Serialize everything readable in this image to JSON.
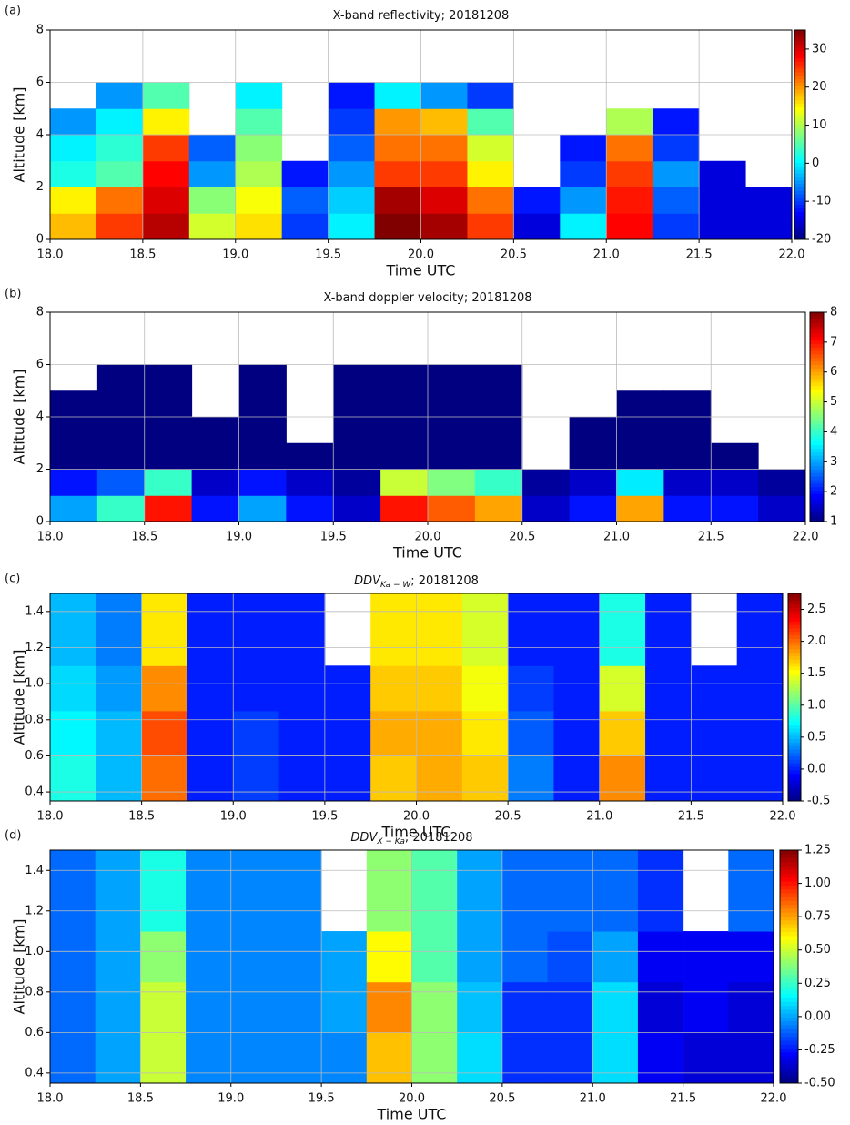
{
  "chart_data": [
    {
      "type": "heatmap",
      "label": "(a)",
      "title": "X-band reflectivity; 20181208",
      "xlabel": "Time UTC",
      "ylabel": "Altitude [km]",
      "colormap": "jet",
      "grid": true,
      "x_edges": [
        18,
        18.25,
        18.5,
        18.75,
        19,
        19.25,
        19.5,
        19.75,
        20,
        20.25,
        20.5,
        20.75,
        21,
        21.25,
        21.5,
        21.75,
        22
      ],
      "y_edges": [
        0,
        1,
        2,
        3,
        4,
        5,
        6
      ],
      "z": [
        [
          18,
          25,
          32,
          12,
          16,
          -10,
          0,
          35,
          33,
          25,
          -15,
          0,
          28,
          -10,
          -15,
          -15
        ],
        [
          15,
          22,
          30,
          8,
          14,
          -8,
          -2,
          33,
          30,
          22,
          -12,
          -5,
          27,
          -8,
          -15,
          -15
        ],
        [
          2,
          5,
          28,
          -5,
          10,
          -12,
          -5,
          25,
          25,
          15,
          null,
          -10,
          25,
          -5,
          -15,
          null
        ],
        [
          0,
          3,
          25,
          -8,
          8,
          null,
          -8,
          22,
          22,
          12,
          null,
          -12,
          22,
          -10,
          null,
          null
        ],
        [
          -5,
          0,
          15,
          null,
          5,
          null,
          -10,
          20,
          18,
          5,
          null,
          null,
          10,
          -12,
          null,
          null
        ],
        [
          null,
          -5,
          5,
          null,
          0,
          null,
          -12,
          0,
          -5,
          -10,
          null,
          null,
          null,
          null,
          null,
          null
        ]
      ],
      "xlim": [
        18,
        22
      ],
      "ylim": [
        0,
        8
      ],
      "xticks": [
        {
          "value": 18,
          "label": "18.0"
        },
        18.5,
        {
          "value": 19,
          "label": "19.0"
        },
        19.5,
        {
          "value": 20,
          "label": "20.0"
        },
        20.5,
        {
          "value": 21,
          "label": "21.0"
        },
        21.5,
        {
          "value": 22,
          "label": "22.0"
        }
      ],
      "yticks": [
        0,
        2,
        4,
        6,
        8
      ],
      "clim": [
        -20,
        35
      ],
      "cticks": [
        -20,
        -10,
        0,
        10,
        20,
        30
      ]
    },
    {
      "type": "heatmap",
      "label": "(b)",
      "title": "X-band doppler velocity; 20181208",
      "xlabel": "Time UTC",
      "ylabel": "Altitude [km]",
      "colormap": "jet",
      "grid": true,
      "x_edges": [
        18,
        18.25,
        18.5,
        18.75,
        19,
        19.25,
        19.5,
        19.75,
        20,
        20.25,
        20.5,
        20.75,
        21,
        21.25,
        21.5,
        21.75,
        22
      ],
      "y_edges": [
        0,
        1,
        2,
        3,
        4,
        5,
        6
      ],
      "z": [
        [
          3,
          4,
          7,
          2,
          3,
          2,
          1.5,
          7,
          6.5,
          6,
          1.5,
          2,
          6,
          2,
          2,
          1.5
        ],
        [
          2,
          2.5,
          4,
          1.5,
          2,
          1.5,
          1.2,
          5,
          4.5,
          4,
          1.2,
          1.5,
          3.5,
          1.5,
          1.5,
          1.2
        ],
        [
          1,
          1,
          1,
          1,
          1,
          1,
          1,
          1,
          1,
          1,
          null,
          1,
          1,
          1,
          1,
          null
        ],
        [
          1,
          1,
          1,
          1,
          1,
          null,
          1,
          1,
          1,
          1,
          null,
          1,
          1,
          1,
          null,
          null
        ],
        [
          1,
          1,
          1,
          null,
          1,
          null,
          1,
          1,
          1,
          1,
          null,
          null,
          1,
          1,
          null,
          null
        ],
        [
          null,
          1,
          1,
          null,
          1,
          null,
          1,
          1,
          1,
          1,
          null,
          null,
          null,
          null,
          null,
          null
        ]
      ],
      "xlim": [
        18,
        22
      ],
      "ylim": [
        0,
        8
      ],
      "xticks": [
        {
          "value": 18,
          "label": "18.0"
        },
        18.5,
        {
          "value": 19,
          "label": "19.0"
        },
        19.5,
        {
          "value": 20,
          "label": "20.0"
        },
        20.5,
        {
          "value": 21,
          "label": "21.0"
        },
        21.5,
        {
          "value": 22,
          "label": "22.0"
        }
      ],
      "yticks": [
        0,
        2,
        4,
        6,
        8
      ],
      "clim": [
        1,
        8
      ],
      "cticks": [
        1,
        2,
        3,
        4,
        5,
        6,
        7,
        8
      ]
    },
    {
      "type": "heatmap",
      "label": "(c)",
      "title": "DDV",
      "title_subscript": "Ka − W",
      "title_suffix": "; 20181208",
      "xlabel": "Time UTC",
      "ylabel": "Altitude [km]",
      "colormap": "jet",
      "grid": true,
      "x_edges": [
        18,
        18.25,
        18.5,
        18.75,
        19,
        19.25,
        19.5,
        19.75,
        20,
        20.25,
        20.5,
        20.75,
        21,
        21.25,
        21.5,
        21.75,
        22
      ],
      "y_edges": [
        0.35,
        0.6,
        0.85,
        1.1,
        1.5
      ],
      "z": [
        [
          0.8,
          0.5,
          2.0,
          0,
          0.1,
          0,
          0,
          1.7,
          1.8,
          1.7,
          0.3,
          0,
          1.9,
          0,
          0,
          0
        ],
        [
          0.7,
          0.5,
          2.1,
          0,
          0.1,
          0,
          0,
          1.8,
          1.8,
          1.6,
          0.2,
          0,
          1.7,
          0,
          0,
          0
        ],
        [
          0.6,
          0.4,
          1.9,
          0,
          0,
          0,
          0,
          1.7,
          1.7,
          1.5,
          0.1,
          0,
          1.4,
          0,
          0,
          0
        ],
        [
          0.5,
          0.3,
          1.6,
          0,
          0,
          0,
          null,
          1.6,
          1.6,
          1.4,
          0,
          0,
          0.8,
          0,
          null,
          0
        ]
      ],
      "xlim": [
        18,
        22
      ],
      "ylim": [
        0.35,
        1.5
      ],
      "xticks": [
        {
          "value": 18,
          "label": "18.0"
        },
        18.5,
        {
          "value": 19,
          "label": "19.0"
        },
        19.5,
        {
          "value": 20,
          "label": "20.0"
        },
        20.5,
        {
          "value": 21,
          "label": "21.0"
        },
        21.5,
        {
          "value": 22,
          "label": "22.0"
        }
      ],
      "yticks": [
        0.4,
        0.6,
        0.8,
        {
          "value": 1,
          "label": "1.0"
        },
        1.2,
        1.4
      ],
      "clim": [
        -0.5,
        2.75
      ],
      "cticks": [
        -0.5,
        {
          "value": 0,
          "label": "0.0"
        },
        0.5,
        {
          "value": 1,
          "label": "1.0"
        },
        1.5,
        {
          "value": 2,
          "label": "2.0"
        },
        2.5
      ]
    },
    {
      "type": "heatmap",
      "label": "(d)",
      "title": "DDV",
      "title_subscript": "X − Ka",
      "title_suffix": "; 20181208",
      "xlabel": "Time UTC",
      "ylabel": "Altitude [km]",
      "colormap": "jet",
      "grid": true,
      "x_edges": [
        18,
        18.25,
        18.5,
        18.75,
        19,
        19.25,
        19.5,
        19.75,
        20,
        20.25,
        20.5,
        20.75,
        21,
        21.25,
        21.5,
        21.75,
        22
      ],
      "y_edges": [
        0.35,
        0.6,
        0.85,
        1.1,
        1.5
      ],
      "z": [
        [
          -0.1,
          0,
          0.5,
          -0.05,
          -0.05,
          -0.05,
          -0.05,
          0.7,
          0.4,
          0.1,
          -0.2,
          -0.2,
          0.1,
          -0.3,
          -0.35,
          -0.35
        ],
        [
          -0.1,
          0,
          0.5,
          -0.05,
          -0.05,
          -0.05,
          0,
          0.8,
          0.4,
          0.05,
          -0.2,
          -0.2,
          0.1,
          -0.35,
          -0.3,
          -0.35
        ],
        [
          -0.1,
          0,
          0.4,
          -0.05,
          -0.05,
          -0.05,
          0,
          0.6,
          0.3,
          0,
          -0.1,
          -0.15,
          0,
          -0.3,
          -0.3,
          -0.3
        ],
        [
          -0.1,
          0,
          0.2,
          -0.05,
          -0.05,
          -0.05,
          null,
          0.4,
          0.3,
          0,
          -0.1,
          -0.1,
          -0.1,
          -0.2,
          null,
          -0.1
        ]
      ],
      "xlim": [
        18,
        22
      ],
      "ylim": [
        0.35,
        1.5
      ],
      "xticks": [
        {
          "value": 18,
          "label": "18.0"
        },
        18.5,
        {
          "value": 19,
          "label": "19.0"
        },
        19.5,
        {
          "value": 20,
          "label": "20.0"
        },
        20.5,
        {
          "value": 21,
          "label": "21.0"
        },
        21.5,
        {
          "value": 22,
          "label": "22.0"
        }
      ],
      "yticks": [
        0.4,
        0.6,
        0.8,
        {
          "value": 1,
          "label": "1.0"
        },
        1.2,
        1.4
      ],
      "clim": [
        -0.5,
        1.25
      ],
      "cticks": [
        {
          "value": -0.5,
          "label": "-0.50"
        },
        {
          "value": -0.25,
          "label": "-0.25"
        },
        {
          "value": 0,
          "label": "0.00"
        },
        {
          "value": 0.25,
          "label": "0.25"
        },
        {
          "value": 0.5,
          "label": "0.50"
        },
        {
          "value": 0.75,
          "label": "0.75"
        },
        {
          "value": 1,
          "label": "1.00"
        },
        {
          "value": 1.25,
          "label": "1.25"
        }
      ]
    }
  ]
}
